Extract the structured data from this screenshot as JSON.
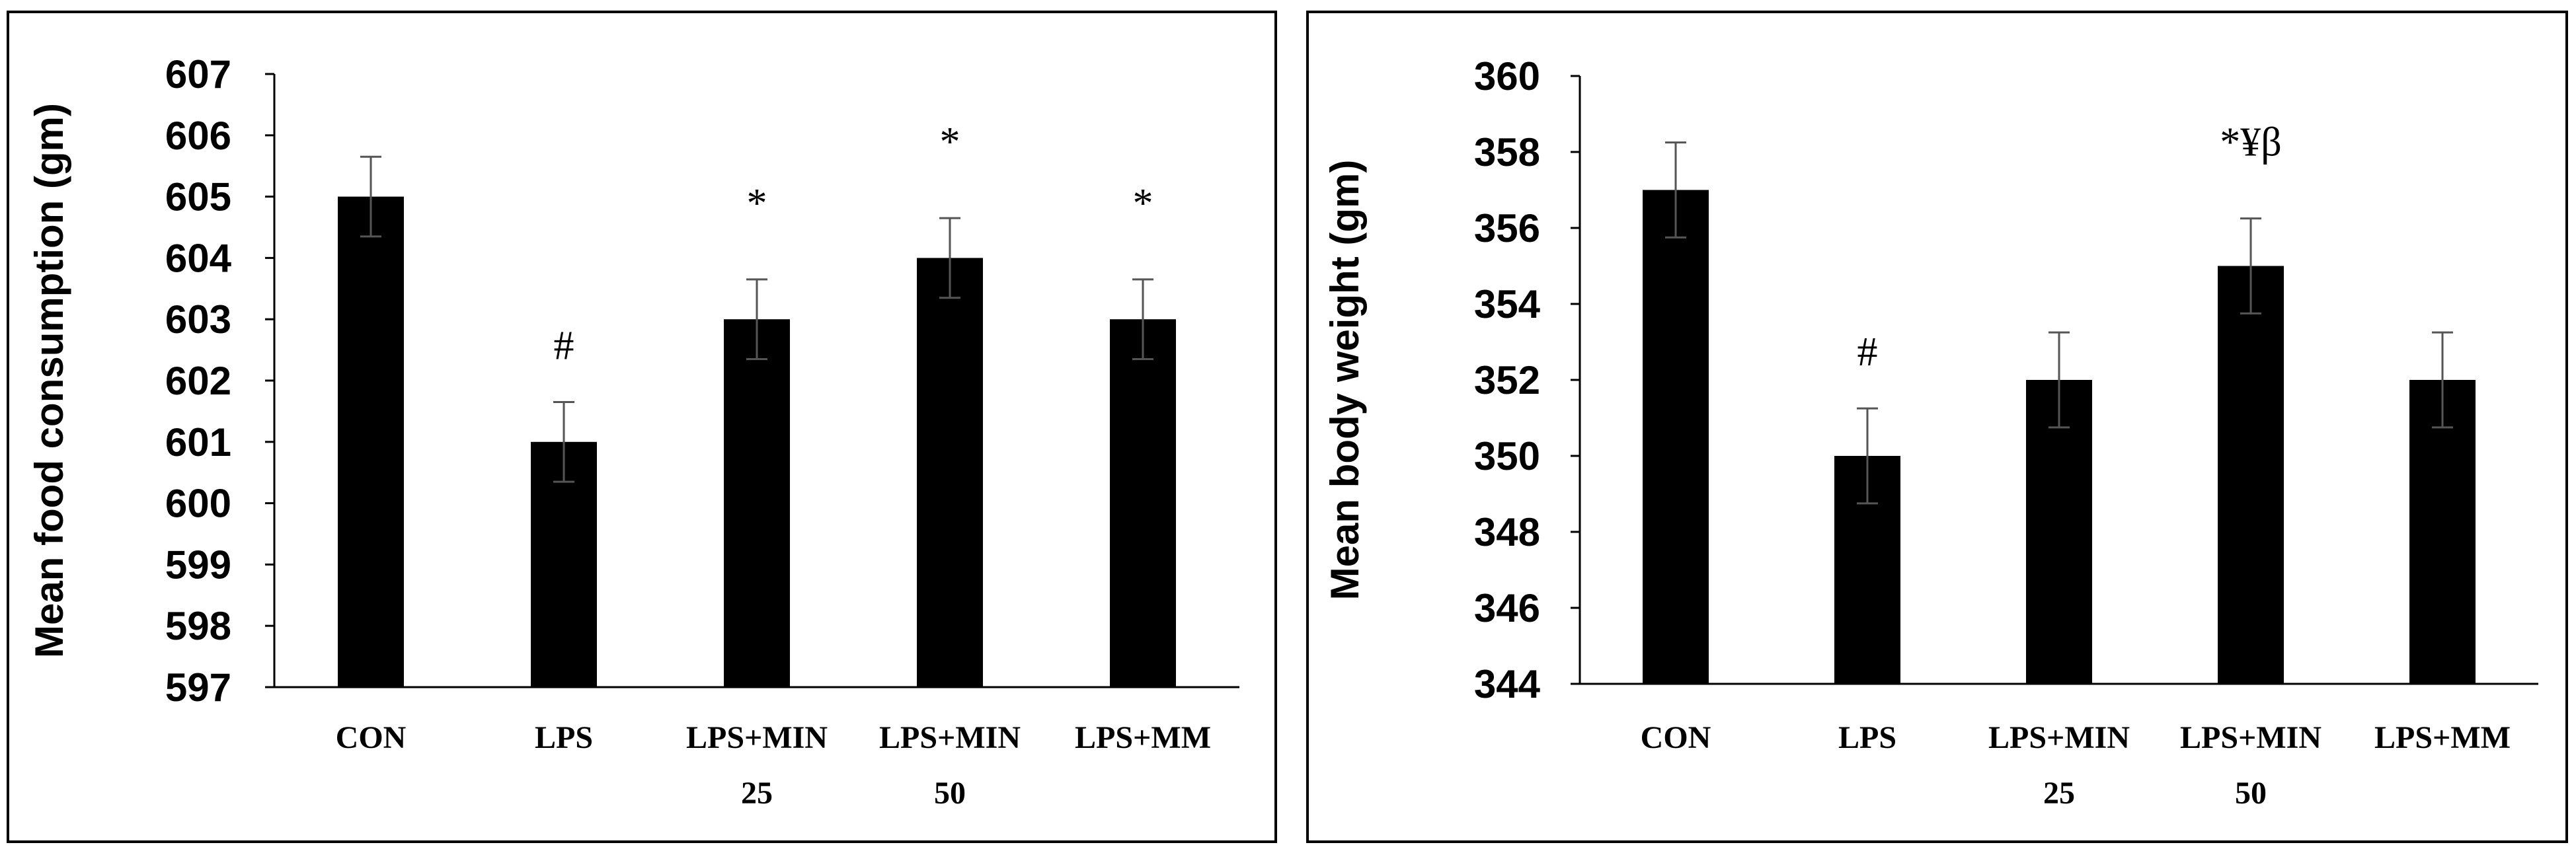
{
  "chart_data": [
    {
      "type": "bar",
      "ylabel": "Mean food consumption (gm)",
      "xlabel": "",
      "title": "",
      "categories": [
        "CON",
        "LPS",
        "LPS+MIN 25",
        "LPS+MIN 50",
        "LPS+MM"
      ],
      "category_lines": [
        [
          "CON"
        ],
        [
          "LPS"
        ],
        [
          "LPS+MIN",
          "25"
        ],
        [
          "LPS+MIN",
          "50"
        ],
        [
          "LPS+MM"
        ]
      ],
      "values": [
        605,
        601,
        603,
        604,
        603
      ],
      "errors": [
        0.65,
        0.65,
        0.65,
        0.65,
        0.65
      ],
      "annotations": [
        "",
        "#",
        "*",
        "*",
        "*"
      ],
      "ylim": [
        597,
        607
      ],
      "yticks": [
        597,
        598,
        599,
        600,
        601,
        602,
        603,
        604,
        605,
        606,
        607
      ],
      "grid": false,
      "bar_color": "#000000"
    },
    {
      "type": "bar",
      "ylabel": "Mean body weight (gm)",
      "xlabel": "",
      "title": "",
      "categories": [
        "CON",
        "LPS",
        "LPS+MIN 25",
        "LPS+MIN 50",
        "LPS+MM"
      ],
      "category_lines": [
        [
          "CON"
        ],
        [
          "LPS"
        ],
        [
          "LPS+MIN",
          "25"
        ],
        [
          "LPS+MIN",
          "50"
        ],
        [
          "LPS+MM"
        ]
      ],
      "values": [
        357,
        350,
        352,
        355,
        352
      ],
      "errors": [
        1.25,
        1.25,
        1.25,
        1.25,
        1.25
      ],
      "annotations": [
        "",
        "#",
        "",
        "*¥β",
        ""
      ],
      "ylim": [
        344,
        360
      ],
      "yticks": [
        344,
        346,
        348,
        350,
        352,
        354,
        356,
        358,
        360
      ],
      "grid": false,
      "bar_color": "#000000"
    }
  ]
}
